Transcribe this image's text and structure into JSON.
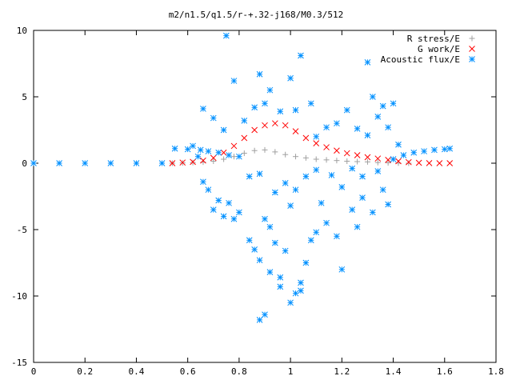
{
  "chart_data": {
    "type": "scatter",
    "title": "m2/n1.5/q1.5/r-+.32-j168/M0.3/512",
    "xlabel": "",
    "ylabel": "",
    "xlim": [
      0,
      1.8
    ],
    "ylim": [
      -15,
      10
    ],
    "xticks": [
      "0",
      "0.2",
      "0.4",
      "0.6",
      "0.8",
      "1",
      "1.2",
      "1.4",
      "1.6",
      "1.8"
    ],
    "yticks": [
      "10",
      "5",
      "0",
      "-5",
      "-10",
      "-15"
    ],
    "xtick_values": [
      0,
      0.2,
      0.4,
      0.6,
      0.8,
      1.0,
      1.2,
      1.4,
      1.6,
      1.8
    ],
    "ytick_values": [
      10,
      5,
      0,
      -5,
      -10,
      -15
    ],
    "grid": false,
    "legend_position": "top-right",
    "series": [
      {
        "name": "R stress/E",
        "marker": "plus",
        "color": "#a0a0a0",
        "points": [
          [
            0.54,
            0
          ],
          [
            0.58,
            0.02
          ],
          [
            0.62,
            0.05
          ],
          [
            0.66,
            0.08
          ],
          [
            0.7,
            0.15
          ],
          [
            0.74,
            0.3
          ],
          [
            0.78,
            0.5
          ],
          [
            0.82,
            0.75
          ],
          [
            0.86,
            0.95
          ],
          [
            0.9,
            1.0
          ],
          [
            0.94,
            0.85
          ],
          [
            0.98,
            0.65
          ],
          [
            1.02,
            0.5
          ],
          [
            1.06,
            0.4
          ],
          [
            1.1,
            0.3
          ],
          [
            1.14,
            0.25
          ],
          [
            1.18,
            0.2
          ],
          [
            1.22,
            0.15
          ],
          [
            1.26,
            0.12
          ],
          [
            1.3,
            0.1
          ],
          [
            1.34,
            0.05
          ],
          [
            1.38,
            0.03
          ],
          [
            1.42,
            0.01
          ],
          [
            1.46,
            0
          ]
        ]
      },
      {
        "name": "G work/E",
        "marker": "cross",
        "color": "#ff0000",
        "points": [
          [
            0.54,
            0
          ],
          [
            0.58,
            0.05
          ],
          [
            0.62,
            0.1
          ],
          [
            0.66,
            0.2
          ],
          [
            0.7,
            0.4
          ],
          [
            0.74,
            0.8
          ],
          [
            0.78,
            1.3
          ],
          [
            0.82,
            1.9
          ],
          [
            0.86,
            2.5
          ],
          [
            0.9,
            2.85
          ],
          [
            0.94,
            3.0
          ],
          [
            0.98,
            2.85
          ],
          [
            1.02,
            2.4
          ],
          [
            1.06,
            1.9
          ],
          [
            1.1,
            1.5
          ],
          [
            1.14,
            1.2
          ],
          [
            1.18,
            0.95
          ],
          [
            1.22,
            0.75
          ],
          [
            1.26,
            0.6
          ],
          [
            1.3,
            0.45
          ],
          [
            1.34,
            0.35
          ],
          [
            1.38,
            0.25
          ],
          [
            1.42,
            0.15
          ],
          [
            1.46,
            0.08
          ],
          [
            1.5,
            0.03
          ],
          [
            1.54,
            0.01
          ],
          [
            1.58,
            0
          ],
          [
            1.62,
            0
          ]
        ]
      },
      {
        "name": "Acoustic flux/E",
        "marker": "star",
        "color": "#0090ff",
        "points": [
          [
            0.0,
            0
          ],
          [
            0.1,
            0
          ],
          [
            0.2,
            0
          ],
          [
            0.3,
            0
          ],
          [
            0.4,
            0
          ],
          [
            0.5,
            0
          ],
          [
            0.55,
            1.1
          ],
          [
            0.6,
            1.05
          ],
          [
            0.65,
            1.0
          ],
          [
            0.68,
            0.9
          ],
          [
            0.72,
            0.8
          ],
          [
            0.76,
            0.6
          ],
          [
            0.8,
            0.5
          ],
          [
            1.4,
            0.3
          ],
          [
            1.44,
            0.6
          ],
          [
            1.48,
            0.8
          ],
          [
            1.52,
            0.9
          ],
          [
            1.56,
            1.0
          ],
          [
            1.6,
            1.05
          ],
          [
            1.62,
            1.1
          ],
          [
            0.75,
            9.6
          ],
          [
            0.78,
            6.2
          ],
          [
            0.88,
            6.7
          ],
          [
            1.0,
            6.4
          ],
          [
            1.04,
            8.1
          ],
          [
            0.92,
            5.5
          ],
          [
            1.3,
            7.6
          ],
          [
            1.32,
            5.0
          ],
          [
            1.36,
            4.3
          ],
          [
            1.4,
            4.5
          ],
          [
            0.66,
            4.1
          ],
          [
            0.7,
            3.4
          ],
          [
            0.74,
            2.5
          ],
          [
            0.82,
            3.2
          ],
          [
            0.86,
            4.2
          ],
          [
            0.9,
            4.5
          ],
          [
            0.96,
            3.9
          ],
          [
            1.02,
            4.0
          ],
          [
            1.08,
            4.5
          ],
          [
            1.1,
            2.0
          ],
          [
            1.14,
            2.7
          ],
          [
            1.18,
            3.0
          ],
          [
            1.22,
            4.0
          ],
          [
            1.26,
            2.6
          ],
          [
            1.3,
            2.1
          ],
          [
            1.34,
            3.5
          ],
          [
            1.38,
            2.7
          ],
          [
            1.42,
            1.4
          ],
          [
            0.62,
            1.3
          ],
          [
            0.64,
            0.5
          ],
          [
            0.66,
            -1.4
          ],
          [
            0.68,
            -2.0
          ],
          [
            0.7,
            -3.5
          ],
          [
            0.72,
            -2.8
          ],
          [
            0.74,
            -4.0
          ],
          [
            0.76,
            -3.0
          ],
          [
            0.78,
            -4.2
          ],
          [
            0.8,
            -3.7
          ],
          [
            0.84,
            -5.8
          ],
          [
            0.86,
            -6.5
          ],
          [
            0.88,
            -7.3
          ],
          [
            0.9,
            -4.2
          ],
          [
            0.92,
            -8.2
          ],
          [
            0.94,
            -6.0
          ],
          [
            0.96,
            -8.6
          ],
          [
            0.98,
            -6.6
          ],
          [
            1.0,
            -10.5
          ],
          [
            1.02,
            -9.8
          ],
          [
            1.04,
            -9.6
          ],
          [
            1.06,
            -7.5
          ],
          [
            1.08,
            -5.8
          ],
          [
            1.1,
            -5.2
          ],
          [
            1.14,
            -4.5
          ],
          [
            1.18,
            -5.5
          ],
          [
            1.2,
            -8.0
          ],
          [
            1.24,
            -3.5
          ],
          [
            1.28,
            -2.6
          ],
          [
            1.32,
            -3.7
          ],
          [
            1.36,
            -2.0
          ],
          [
            1.38,
            -3.1
          ],
          [
            0.88,
            -11.8
          ],
          [
            0.9,
            -11.4
          ],
          [
            0.84,
            -1.0
          ],
          [
            0.88,
            -0.8
          ],
          [
            0.94,
            -2.2
          ],
          [
            0.98,
            -1.5
          ],
          [
            1.02,
            -2.0
          ],
          [
            1.06,
            -1.0
          ],
          [
            1.1,
            -0.5
          ],
          [
            1.16,
            -0.9
          ],
          [
            1.2,
            -1.8
          ],
          [
            1.24,
            -0.4
          ],
          [
            1.28,
            -1.0
          ],
          [
            1.34,
            -0.6
          ],
          [
            0.96,
            -9.3
          ],
          [
            1.04,
            -9.0
          ],
          [
            0.92,
            -4.8
          ],
          [
            1.0,
            -3.2
          ],
          [
            1.12,
            -3.0
          ],
          [
            1.26,
            -4.8
          ]
        ]
      }
    ]
  }
}
